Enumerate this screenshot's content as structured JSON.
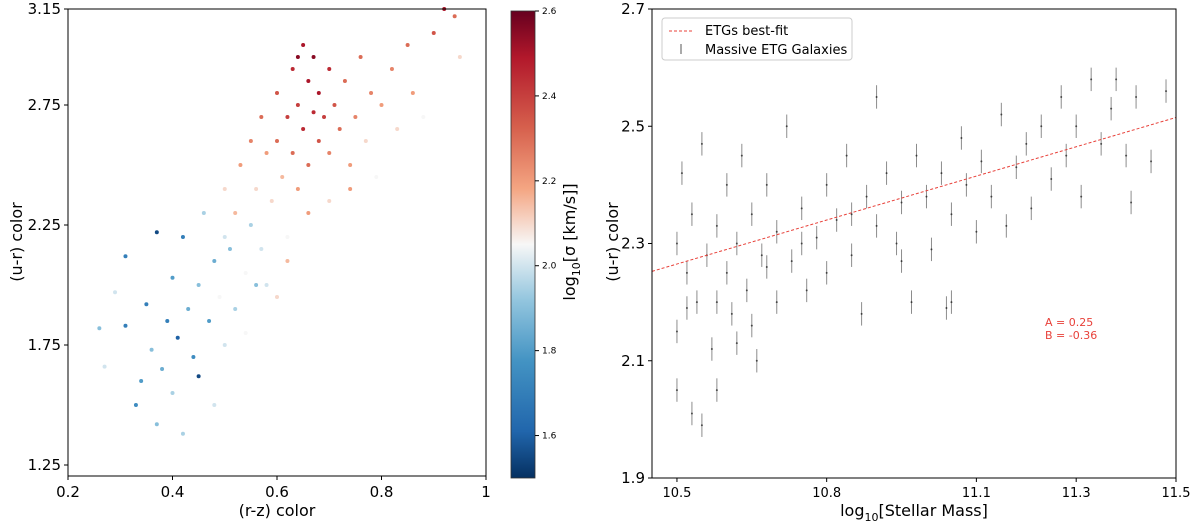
{
  "chart_data": [
    {
      "type": "scatter",
      "xlabel": "(r-z) color",
      "ylabel": "(u-r) color",
      "xlim": [
        0.2,
        1.0
      ],
      "ylim": [
        1.2,
        3.15
      ],
      "xticks": [
        "0.2",
        "0.4",
        "0.6",
        "0.8",
        "1"
      ],
      "xtick_values": [
        0.2,
        0.4,
        0.6,
        0.8,
        1.0
      ],
      "yticks": [
        "1.25",
        "1.75",
        "2.25",
        "2.75",
        "3.15"
      ],
      "ytick_values": [
        1.25,
        1.75,
        2.25,
        2.75,
        3.15
      ],
      "colorbar": {
        "label": "log10[σ [km/s]]",
        "label_main": "log",
        "label_sub": "10",
        "label_rest": "[σ [km/s]]",
        "range": [
          1.5,
          2.6
        ],
        "ticks": [
          "1.6",
          "1.8",
          "2.0",
          "2.2",
          "2.4",
          "2.6"
        ],
        "tick_values": [
          1.6,
          1.8,
          2.0,
          2.2,
          2.4,
          2.6
        ],
        "colormap": "RdBu_r"
      },
      "points": [
        [
          0.26,
          1.82,
          1.9
        ],
        [
          0.27,
          1.66,
          2.0
        ],
        [
          0.29,
          1.97,
          2.0
        ],
        [
          0.31,
          2.12,
          1.7
        ],
        [
          0.31,
          1.83,
          1.7
        ],
        [
          0.33,
          1.5,
          1.75
        ],
        [
          0.34,
          1.6,
          1.8
        ],
        [
          0.35,
          1.92,
          1.7
        ],
        [
          0.36,
          1.73,
          1.9
        ],
        [
          0.37,
          2.22,
          1.55
        ],
        [
          0.37,
          1.42,
          1.9
        ],
        [
          0.38,
          1.65,
          1.85
        ],
        [
          0.39,
          1.85,
          1.7
        ],
        [
          0.4,
          2.03,
          1.8
        ],
        [
          0.4,
          1.55,
          1.95
        ],
        [
          0.41,
          1.78,
          1.6
        ],
        [
          0.42,
          2.2,
          1.7
        ],
        [
          0.43,
          1.9,
          1.85
        ],
        [
          0.44,
          1.7,
          1.75
        ],
        [
          0.45,
          2.0,
          1.9
        ],
        [
          0.45,
          1.62,
          1.55
        ],
        [
          0.46,
          2.3,
          1.95
        ],
        [
          0.47,
          1.85,
          1.8
        ],
        [
          0.48,
          2.1,
          1.85
        ],
        [
          0.49,
          1.95,
          2.05
        ],
        [
          0.5,
          2.4,
          2.1
        ],
        [
          0.5,
          1.75,
          2.0
        ],
        [
          0.51,
          2.15,
          1.9
        ],
        [
          0.52,
          2.3,
          2.15
        ],
        [
          0.52,
          1.9,
          1.95
        ],
        [
          0.53,
          2.5,
          2.2
        ],
        [
          0.54,
          2.05,
          2.05
        ],
        [
          0.55,
          2.6,
          2.25
        ],
        [
          0.55,
          2.25,
          1.95
        ],
        [
          0.56,
          2.4,
          2.1
        ],
        [
          0.57,
          2.7,
          2.3
        ],
        [
          0.57,
          2.15,
          2.0
        ],
        [
          0.58,
          2.55,
          2.2
        ],
        [
          0.59,
          2.35,
          2.1
        ],
        [
          0.6,
          2.8,
          2.35
        ],
        [
          0.6,
          2.6,
          2.3
        ],
        [
          0.61,
          2.45,
          2.15
        ],
        [
          0.62,
          2.7,
          2.4
        ],
        [
          0.62,
          2.2,
          2.05
        ],
        [
          0.63,
          2.9,
          2.45
        ],
        [
          0.63,
          2.55,
          2.3
        ],
        [
          0.64,
          2.75,
          2.4
        ],
        [
          0.64,
          2.4,
          2.2
        ],
        [
          0.65,
          3.0,
          2.5
        ],
        [
          0.65,
          2.65,
          2.45
        ],
        [
          0.66,
          2.85,
          2.5
        ],
        [
          0.66,
          2.5,
          2.3
        ],
        [
          0.67,
          2.72,
          2.45
        ],
        [
          0.67,
          2.95,
          2.55
        ],
        [
          0.68,
          2.6,
          2.35
        ],
        [
          0.68,
          2.8,
          2.5
        ],
        [
          0.69,
          2.7,
          2.4
        ],
        [
          0.7,
          2.9,
          2.45
        ],
        [
          0.7,
          2.55,
          2.25
        ],
        [
          0.71,
          2.75,
          2.35
        ],
        [
          0.72,
          2.65,
          2.3
        ],
        [
          0.73,
          2.85,
          2.3
        ],
        [
          0.74,
          2.5,
          2.2
        ],
        [
          0.75,
          2.7,
          2.25
        ],
        [
          0.76,
          2.95,
          2.3
        ],
        [
          0.77,
          2.6,
          2.1
        ],
        [
          0.78,
          2.8,
          2.25
        ],
        [
          0.79,
          2.45,
          2.05
        ],
        [
          0.8,
          2.75,
          2.2
        ],
        [
          0.82,
          2.9,
          2.25
        ],
        [
          0.83,
          2.65,
          2.1
        ],
        [
          0.85,
          3.0,
          2.3
        ],
        [
          0.86,
          2.8,
          2.2
        ],
        [
          0.88,
          2.7,
          2.05
        ],
        [
          0.9,
          3.05,
          2.35
        ],
        [
          0.92,
          3.15,
          2.5
        ],
        [
          0.94,
          3.12,
          2.3
        ],
        [
          0.95,
          2.95,
          2.1
        ],
        [
          0.58,
          2.0,
          2.0
        ],
        [
          0.62,
          2.1,
          2.15
        ],
        [
          0.66,
          2.3,
          2.2
        ],
        [
          0.7,
          2.35,
          2.1
        ],
        [
          0.54,
          1.8,
          2.05
        ],
        [
          0.6,
          1.95,
          2.1
        ],
        [
          0.48,
          1.5,
          2.0
        ],
        [
          0.42,
          1.38,
          1.95
        ],
        [
          0.5,
          2.2,
          2.0
        ],
        [
          0.56,
          2.0,
          1.9
        ],
        [
          0.74,
          2.4,
          2.2
        ],
        [
          0.64,
          2.95,
          2.55
        ]
      ]
    },
    {
      "type": "scatter",
      "xlabel_main": "log",
      "xlabel_sub": "10",
      "xlabel_rest": "[Stellar Mass]",
      "xlabel": "log10[Stellar Mass]",
      "ylabel": "(u-r) color",
      "xlim": [
        10.45,
        11.5
      ],
      "ylim": [
        1.9,
        2.7
      ],
      "xticks": [
        "10.5",
        "10.8",
        "11.1",
        "11.3",
        "11.5"
      ],
      "xtick_values": [
        10.5,
        10.8,
        11.1,
        11.3,
        11.5
      ],
      "yticks": [
        "1.9",
        "2.1",
        "2.3",
        "2.5",
        "2.7"
      ],
      "ytick_values": [
        1.9,
        2.1,
        2.3,
        2.5,
        2.7
      ],
      "legend": {
        "placement": "top-left",
        "entries": [
          "ETGs best-fit",
          "Massive ETG Galaxies"
        ]
      },
      "fit": {
        "A": 0.25,
        "B": -0.36,
        "color": "#e8413a"
      },
      "annotation": [
        "A = 0.25",
        "B = -0.36"
      ],
      "points": [
        [
          10.5,
          2.3,
          0.02
        ],
        [
          10.5,
          2.15,
          0.02
        ],
        [
          10.5,
          2.05,
          0.02
        ],
        [
          10.51,
          2.42,
          0.02
        ],
        [
          10.52,
          2.25,
          0.02
        ],
        [
          10.53,
          2.01,
          0.02
        ],
        [
          10.53,
          2.35,
          0.02
        ],
        [
          10.54,
          2.2,
          0.02
        ],
        [
          10.55,
          1.99,
          0.02
        ],
        [
          10.55,
          2.47,
          0.02
        ],
        [
          10.56,
          2.28,
          0.02
        ],
        [
          10.57,
          2.12,
          0.02
        ],
        [
          10.58,
          2.33,
          0.02
        ],
        [
          10.58,
          2.05,
          0.02
        ],
        [
          10.6,
          2.25,
          0.02
        ],
        [
          10.6,
          2.4,
          0.02
        ],
        [
          10.61,
          2.18,
          0.02
        ],
        [
          10.62,
          2.3,
          0.02
        ],
        [
          10.63,
          2.45,
          0.02
        ],
        [
          10.64,
          2.22,
          0.02
        ],
        [
          10.65,
          2.35,
          0.02
        ],
        [
          10.66,
          2.1,
          0.02
        ],
        [
          10.67,
          2.28,
          0.02
        ],
        [
          10.68,
          2.4,
          0.02
        ],
        [
          10.7,
          2.32,
          0.02
        ],
        [
          10.7,
          2.2,
          0.02
        ],
        [
          10.72,
          2.5,
          0.02
        ],
        [
          10.73,
          2.27,
          0.02
        ],
        [
          10.75,
          2.36,
          0.02
        ],
        [
          10.76,
          2.22,
          0.02
        ],
        [
          10.78,
          2.31,
          0.02
        ],
        [
          10.8,
          2.4,
          0.02
        ],
        [
          10.8,
          2.25,
          0.02
        ],
        [
          10.82,
          2.34,
          0.02
        ],
        [
          10.84,
          2.45,
          0.02
        ],
        [
          10.85,
          2.28,
          0.02
        ],
        [
          10.87,
          2.18,
          0.02
        ],
        [
          10.88,
          2.38,
          0.02
        ],
        [
          10.9,
          2.33,
          0.02
        ],
        [
          10.9,
          2.55,
          0.02
        ],
        [
          10.92,
          2.42,
          0.02
        ],
        [
          10.94,
          2.3,
          0.02
        ],
        [
          10.95,
          2.37,
          0.02
        ],
        [
          10.97,
          2.2,
          0.02
        ],
        [
          10.98,
          2.45,
          0.02
        ],
        [
          11.0,
          2.38,
          0.02
        ],
        [
          11.01,
          2.29,
          0.02
        ],
        [
          11.03,
          2.42,
          0.02
        ],
        [
          11.04,
          2.19,
          0.02
        ],
        [
          11.05,
          2.35,
          0.02
        ],
        [
          11.07,
          2.48,
          0.02
        ],
        [
          11.08,
          2.4,
          0.02
        ],
        [
          11.1,
          2.32,
          0.02
        ],
        [
          11.11,
          2.44,
          0.02
        ],
        [
          11.13,
          2.38,
          0.02
        ],
        [
          11.15,
          2.52,
          0.02
        ],
        [
          11.16,
          2.33,
          0.02
        ],
        [
          11.18,
          2.43,
          0.02
        ],
        [
          11.2,
          2.47,
          0.02
        ],
        [
          11.21,
          2.36,
          0.02
        ],
        [
          11.23,
          2.5,
          0.02
        ],
        [
          11.25,
          2.41,
          0.02
        ],
        [
          11.27,
          2.55,
          0.02
        ],
        [
          11.28,
          2.45,
          0.02
        ],
        [
          11.3,
          2.5,
          0.02
        ],
        [
          11.31,
          2.38,
          0.02
        ],
        [
          11.33,
          2.58,
          0.02
        ],
        [
          11.35,
          2.47,
          0.02
        ],
        [
          11.37,
          2.53,
          0.02
        ],
        [
          11.38,
          2.58,
          0.02
        ],
        [
          11.4,
          2.45,
          0.02
        ],
        [
          11.41,
          2.37,
          0.02
        ],
        [
          11.42,
          2.55,
          0.02
        ],
        [
          11.45,
          2.44,
          0.02
        ],
        [
          11.48,
          2.56,
          0.02
        ],
        [
          10.65,
          2.16,
          0.02
        ],
        [
          10.75,
          2.3,
          0.02
        ],
        [
          10.85,
          2.35,
          0.02
        ],
        [
          10.95,
          2.27,
          0.02
        ],
        [
          11.05,
          2.2,
          0.02
        ],
        [
          10.58,
          2.2,
          0.02
        ],
        [
          10.68,
          2.26,
          0.02
        ],
        [
          10.52,
          2.19,
          0.02
        ],
        [
          10.62,
          2.13,
          0.02
        ]
      ]
    }
  ]
}
